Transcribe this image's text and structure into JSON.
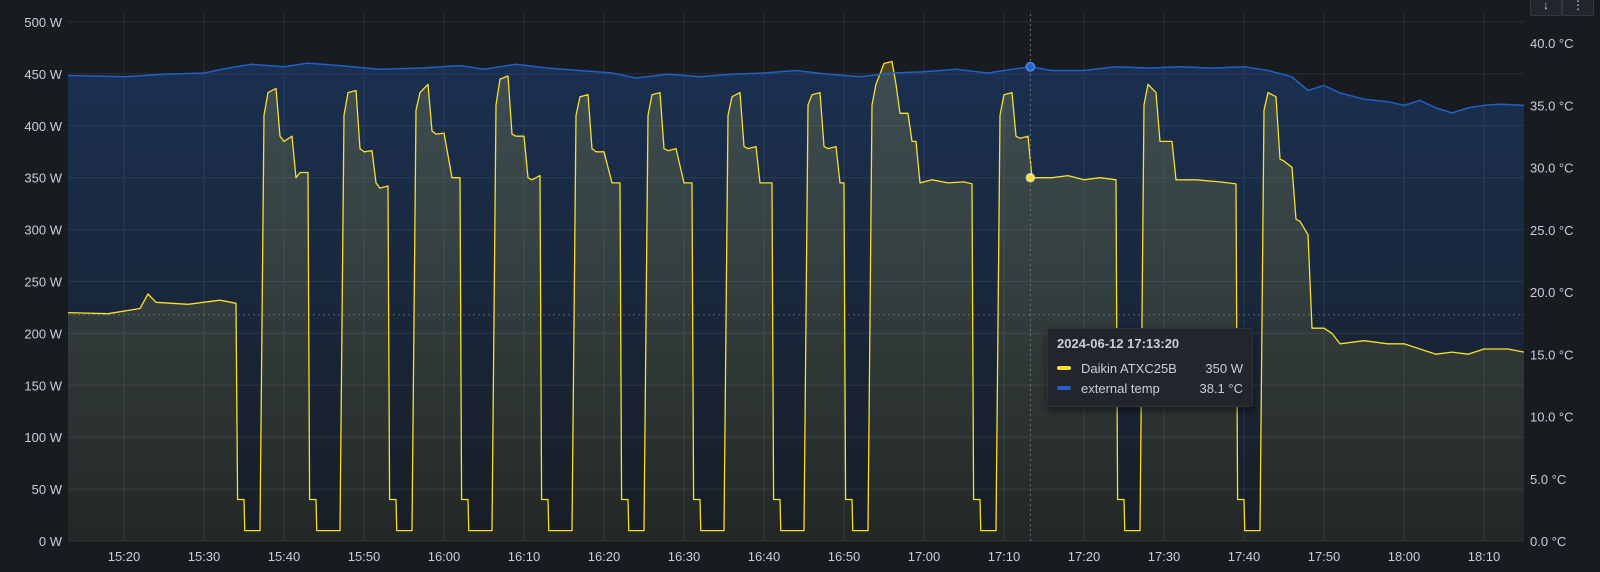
{
  "panel": {
    "menu_icons": [
      "arrow-down-icon",
      "more-icon"
    ]
  },
  "chart_data": {
    "type": "line",
    "x_ticks": [
      "15:20",
      "15:30",
      "15:40",
      "15:50",
      "16:00",
      "16:10",
      "16:20",
      "16:30",
      "16:40",
      "16:50",
      "17:00",
      "17:10",
      "17:20",
      "17:30",
      "17:40",
      "17:50",
      "18:00",
      "18:10"
    ],
    "x_range": [
      "15:13",
      "18:15"
    ],
    "y_left": {
      "ticks": [
        "0 W",
        "50 W",
        "100 W",
        "150 W",
        "200 W",
        "250 W",
        "300 W",
        "350 W",
        "400 W",
        "450 W",
        "500 W"
      ],
      "range": [
        0,
        500
      ],
      "unit": "W"
    },
    "y_right": {
      "ticks": [
        "0.0 °C",
        "5.0 °C",
        "10.0 °C",
        "15.0 °C",
        "20.0 °C",
        "25.0 °C",
        "30.0 °C",
        "35.0 °C",
        "40.0 °C"
      ],
      "range": [
        0,
        41.7
      ],
      "unit": "°C"
    },
    "grid": true,
    "series": [
      {
        "name": "Daikin ATXC25B",
        "axis": "left",
        "color": "#fade2a",
        "points": [
          [
            "15:13",
            220
          ],
          [
            "15:18",
            219
          ],
          [
            "15:22",
            224
          ],
          [
            "15:23",
            238
          ],
          [
            "15:24",
            230
          ],
          [
            "15:28",
            228
          ],
          [
            "15:32",
            232
          ],
          [
            "15:34",
            229
          ],
          [
            "15:34.2",
            40
          ],
          [
            "15:35",
            40
          ],
          [
            "15:35.1",
            10
          ],
          [
            "15:37",
            10
          ],
          [
            "15:37.5",
            410
          ],
          [
            "15:38",
            432
          ],
          [
            "15:39",
            436
          ],
          [
            "15:39.5",
            390
          ],
          [
            "15:40",
            385
          ],
          [
            "15:41",
            390
          ],
          [
            "15:41.5",
            350
          ],
          [
            "15:42",
            355
          ],
          [
            "15:43",
            355
          ],
          [
            "15:43.2",
            40
          ],
          [
            "15:44",
            40
          ],
          [
            "15:44.1",
            10
          ],
          [
            "15:47",
            10
          ],
          [
            "15:47.5",
            410
          ],
          [
            "15:48",
            432
          ],
          [
            "15:49",
            434
          ],
          [
            "15:49.5",
            378
          ],
          [
            "15:50",
            375
          ],
          [
            "15:51",
            376
          ],
          [
            "15:51.5",
            345
          ],
          [
            "15:52",
            340
          ],
          [
            "15:53",
            342
          ],
          [
            "15:53.2",
            40
          ],
          [
            "15:54",
            40
          ],
          [
            "15:54.1",
            10
          ],
          [
            "15:56",
            10
          ],
          [
            "15:56.5",
            415
          ],
          [
            "15:57",
            432
          ],
          [
            "15:58",
            440
          ],
          [
            "15:58.5",
            395
          ],
          [
            "15:59",
            392
          ],
          [
            "16:00",
            393
          ],
          [
            "16:01",
            350
          ],
          [
            "16:02",
            350
          ],
          [
            "16:02.2",
            40
          ],
          [
            "16:03",
            40
          ],
          [
            "16:03.1",
            10
          ],
          [
            "16:06",
            10
          ],
          [
            "16:06.5",
            420
          ],
          [
            "16:07",
            445
          ],
          [
            "16:08",
            448
          ],
          [
            "16:08.5",
            392
          ],
          [
            "16:09",
            390
          ],
          [
            "16:10",
            390
          ],
          [
            "16:10.5",
            350
          ],
          [
            "16:11",
            348
          ],
          [
            "16:12",
            352
          ],
          [
            "16:12.2",
            40
          ],
          [
            "16:13",
            40
          ],
          [
            "16:13.1",
            10
          ],
          [
            "16:16",
            10
          ],
          [
            "16:16.5",
            410
          ],
          [
            "16:17",
            428
          ],
          [
            "16:18",
            430
          ],
          [
            "16:18.5",
            378
          ],
          [
            "16:19",
            375
          ],
          [
            "16:20",
            375
          ],
          [
            "16:21",
            345
          ],
          [
            "16:22",
            345
          ],
          [
            "16:22.2",
            40
          ],
          [
            "16:23",
            40
          ],
          [
            "16:23.1",
            10
          ],
          [
            "16:25",
            10
          ],
          [
            "16:25.5",
            410
          ],
          [
            "16:26",
            430
          ],
          [
            "16:27",
            432
          ],
          [
            "16:27.5",
            378
          ],
          [
            "16:28",
            376
          ],
          [
            "16:29",
            378
          ],
          [
            "16:30",
            345
          ],
          [
            "16:31",
            345
          ],
          [
            "16:31.2",
            40
          ],
          [
            "16:32",
            40
          ],
          [
            "16:32.1",
            10
          ],
          [
            "16:35",
            10
          ],
          [
            "16:35.5",
            410
          ],
          [
            "16:36",
            428
          ],
          [
            "16:37",
            432
          ],
          [
            "16:37.5",
            380
          ],
          [
            "16:38",
            378
          ],
          [
            "16:39",
            380
          ],
          [
            "16:39.5",
            345
          ],
          [
            "16:40",
            345
          ],
          [
            "16:41",
            345
          ],
          [
            "16:41.2",
            40
          ],
          [
            "16:42",
            40
          ],
          [
            "16:42.1",
            10
          ],
          [
            "16:45",
            10
          ],
          [
            "16:45.5",
            420
          ],
          [
            "16:46",
            430
          ],
          [
            "16:47",
            432
          ],
          [
            "16:47.5",
            380
          ],
          [
            "16:48",
            378
          ],
          [
            "16:49",
            380
          ],
          [
            "16:49.5",
            345
          ],
          [
            "16:50",
            345
          ],
          [
            "16:50.2",
            40
          ],
          [
            "16:51",
            40
          ],
          [
            "16:51.1",
            10
          ],
          [
            "16:53",
            10
          ],
          [
            "16:53.5",
            420
          ],
          [
            "16:54",
            440
          ],
          [
            "16:55",
            460
          ],
          [
            "16:56",
            462
          ],
          [
            "16:56.5",
            440
          ],
          [
            "16:57",
            412
          ],
          [
            "16:58",
            412
          ],
          [
            "16:58.5",
            385
          ],
          [
            "16:59",
            385
          ],
          [
            "16:59.5",
            345
          ],
          [
            "17:01",
            348
          ],
          [
            "17:03",
            345
          ],
          [
            "17:05",
            346
          ],
          [
            "17:06",
            344
          ],
          [
            "17:06.2",
            40
          ],
          [
            "17:07",
            40
          ],
          [
            "17:07.1",
            10
          ],
          [
            "17:09",
            10
          ],
          [
            "17:09.5",
            410
          ],
          [
            "17:10",
            430
          ],
          [
            "17:11",
            432
          ],
          [
            "17:11.5",
            390
          ],
          [
            "17:12",
            388
          ],
          [
            "17:13",
            390
          ],
          [
            "17:13.5",
            350
          ],
          [
            "17:16",
            350
          ],
          [
            "17:18",
            352
          ],
          [
            "17:20",
            348
          ],
          [
            "17:22",
            350
          ],
          [
            "17:24",
            348
          ],
          [
            "17:24.2",
            40
          ],
          [
            "17:25",
            40
          ],
          [
            "17:25.1",
            10
          ],
          [
            "17:27",
            10
          ],
          [
            "17:27.5",
            420
          ],
          [
            "17:28",
            440
          ],
          [
            "17:29",
            432
          ],
          [
            "17:29.5",
            385
          ],
          [
            "17:30",
            385
          ],
          [
            "17:31",
            385
          ],
          [
            "17:31.5",
            348
          ],
          [
            "17:34",
            348
          ],
          [
            "17:37",
            346
          ],
          [
            "17:39",
            344
          ],
          [
            "17:39.2",
            40
          ],
          [
            "17:40",
            40
          ],
          [
            "17:40.1",
            10
          ],
          [
            "17:42",
            10
          ],
          [
            "17:42.5",
            415
          ],
          [
            "17:43",
            432
          ],
          [
            "17:44",
            428
          ],
          [
            "17:44.5",
            368
          ],
          [
            "17:45",
            366
          ],
          [
            "17:46",
            360
          ],
          [
            "17:46.5",
            310
          ],
          [
            "17:47",
            308
          ],
          [
            "17:48",
            295
          ],
          [
            "17:48.5",
            205
          ],
          [
            "17:50",
            205
          ],
          [
            "17:51",
            200
          ],
          [
            "17:52",
            190
          ],
          [
            "17:55",
            193
          ],
          [
            "17:58",
            190
          ],
          [
            "18:00",
            190
          ],
          [
            "18:02",
            185
          ],
          [
            "18:04",
            180
          ],
          [
            "18:06",
            182
          ],
          [
            "18:08",
            180
          ],
          [
            "18:10",
            185
          ],
          [
            "18:13",
            185
          ],
          [
            "18:15",
            182
          ]
        ]
      },
      {
        "name": "external temp",
        "axis": "right",
        "color": "#1f60c4",
        "points": [
          [
            "15:13",
            37.4
          ],
          [
            "15:20",
            37.3
          ],
          [
            "15:25",
            37.5
          ],
          [
            "15:30",
            37.6
          ],
          [
            "15:33",
            38.0
          ],
          [
            "15:36",
            38.3
          ],
          [
            "15:40",
            38.1
          ],
          [
            "15:43",
            38.4
          ],
          [
            "15:47",
            38.2
          ],
          [
            "15:52",
            37.9
          ],
          [
            "15:57",
            38.0
          ],
          [
            "16:02",
            38.2
          ],
          [
            "16:05",
            37.9
          ],
          [
            "16:09",
            38.3
          ],
          [
            "16:13",
            38.0
          ],
          [
            "16:17",
            37.8
          ],
          [
            "16:21",
            37.6
          ],
          [
            "16:24",
            37.2
          ],
          [
            "16:28",
            37.5
          ],
          [
            "16:32",
            37.3
          ],
          [
            "16:36",
            37.5
          ],
          [
            "16:40",
            37.6
          ],
          [
            "16:44",
            37.8
          ],
          [
            "16:48",
            37.5
          ],
          [
            "16:52",
            37.3
          ],
          [
            "16:56",
            37.6
          ],
          [
            "17:00",
            37.7
          ],
          [
            "17:04",
            37.9
          ],
          [
            "17:08",
            37.6
          ],
          [
            "17:11",
            37.9
          ],
          [
            "17:13.3",
            38.1
          ],
          [
            "17:16",
            37.8
          ],
          [
            "17:20",
            37.8
          ],
          [
            "17:24",
            38.1
          ],
          [
            "17:28",
            38.0
          ],
          [
            "17:32",
            38.1
          ],
          [
            "17:36",
            38.0
          ],
          [
            "17:40",
            38.1
          ],
          [
            "17:43",
            37.8
          ],
          [
            "17:46",
            37.3
          ],
          [
            "17:48",
            36.2
          ],
          [
            "17:50",
            36.6
          ],
          [
            "17:52",
            36.0
          ],
          [
            "17:55",
            35.5
          ],
          [
            "17:58",
            35.3
          ],
          [
            "18:00",
            35.0
          ],
          [
            "18:02",
            35.4
          ],
          [
            "18:04",
            34.8
          ],
          [
            "18:06",
            34.4
          ],
          [
            "18:08",
            34.8
          ],
          [
            "18:10",
            35.0
          ],
          [
            "18:12",
            35.1
          ],
          [
            "18:15",
            35.0
          ]
        ]
      }
    ],
    "threshold_line": {
      "axis": "left",
      "value": 218
    },
    "hover": {
      "time": "17:13.3",
      "tooltip": {
        "title": "2024-06-12 17:13:20",
        "rows": [
          {
            "name": "Daikin ATXC25B",
            "value": "350 W",
            "color": "#fade2a"
          },
          {
            "name": "external temp",
            "value": "38.1 °C",
            "color": "#1f60c4"
          }
        ]
      }
    }
  }
}
